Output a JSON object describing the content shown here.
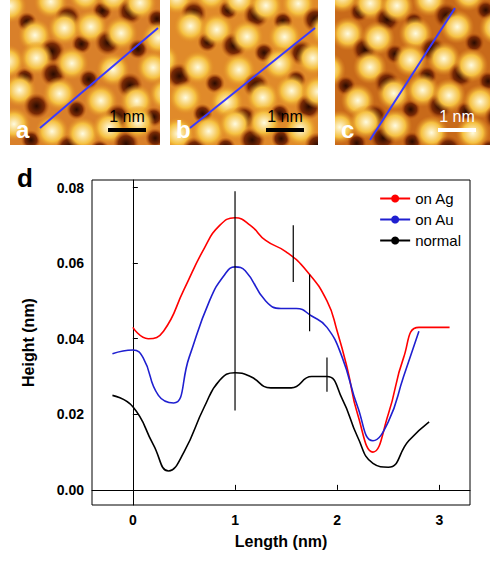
{
  "images": [
    {
      "label": "a",
      "scale_bar": "1 nm"
    },
    {
      "label": "b",
      "scale_bar": "1 nm"
    },
    {
      "label": "c",
      "scale_bar": "1 nm"
    }
  ],
  "chart_data": {
    "type": "line",
    "panel_label": "d",
    "x_label": "Length (nm)",
    "y_label": "Height (nm)",
    "xlim": [
      -0.4,
      3.3
    ],
    "xticks": [
      0,
      1,
      2,
      3
    ],
    "ylim": [
      -0.004,
      0.082
    ],
    "yticks": [
      {
        "value": 0,
        "label": "0.00"
      },
      {
        "value": 0.02,
        "label": "0.02"
      },
      {
        "value": 0.04,
        "label": "0.04"
      },
      {
        "value": 0.06,
        "label": "0.06"
      },
      {
        "value": 0.08,
        "label": "0.08"
      }
    ],
    "legend": "upper right",
    "series": [
      {
        "name": "on Ag",
        "color": "#ff0000",
        "x": [
          0,
          0.15,
          0.3,
          0.5,
          0.7,
          0.85,
          1.0,
          1.15,
          1.3,
          1.5,
          1.7,
          1.9,
          2.0,
          2.1,
          2.2,
          2.35,
          2.5,
          2.65,
          2.8,
          3.1
        ],
        "values": [
          0.043,
          0.04,
          0.042,
          0.053,
          0.064,
          0.07,
          0.072,
          0.07,
          0.066,
          0.063,
          0.058,
          0.05,
          0.042,
          0.032,
          0.02,
          0.01,
          0.02,
          0.035,
          0.043,
          0.043
        ]
      },
      {
        "name": "on Au",
        "color": "#1f1fd0",
        "x": [
          -0.2,
          0,
          0.1,
          0.25,
          0.4,
          0.55,
          0.75,
          0.9,
          1.0,
          1.1,
          1.3,
          1.45,
          1.6,
          1.75,
          1.9,
          2.05,
          2.2,
          2.35,
          2.5,
          2.65,
          2.8
        ],
        "values": [
          0.036,
          0.037,
          0.035,
          0.025,
          0.023,
          0.035,
          0.05,
          0.057,
          0.059,
          0.058,
          0.05,
          0.048,
          0.048,
          0.046,
          0.043,
          0.035,
          0.022,
          0.013,
          0.018,
          0.03,
          0.042
        ]
      },
      {
        "name": "normal",
        "color": "#000000",
        "x": [
          -0.2,
          0,
          0.2,
          0.35,
          0.5,
          0.7,
          0.85,
          1.0,
          1.15,
          1.35,
          1.55,
          1.75,
          1.9,
          2.05,
          2.2,
          2.35,
          2.5,
          2.7,
          2.9
        ],
        "values": [
          0.025,
          0.022,
          0.012,
          0.005,
          0.01,
          0.022,
          0.029,
          0.031,
          0.03,
          0.027,
          0.027,
          0.03,
          0.03,
          0.024,
          0.014,
          0.007,
          0.006,
          0.013,
          0.018
        ]
      }
    ],
    "markers": [
      {
        "x": 1.0,
        "y": [
          0.021,
          0.079
        ]
      },
      {
        "x": 1.57,
        "y": [
          0.055,
          0.07
        ]
      },
      {
        "x": 1.73,
        "y": [
          0.042,
          0.057
        ]
      },
      {
        "x": 1.9,
        "y": [
          0.026,
          0.035
        ]
      }
    ]
  }
}
